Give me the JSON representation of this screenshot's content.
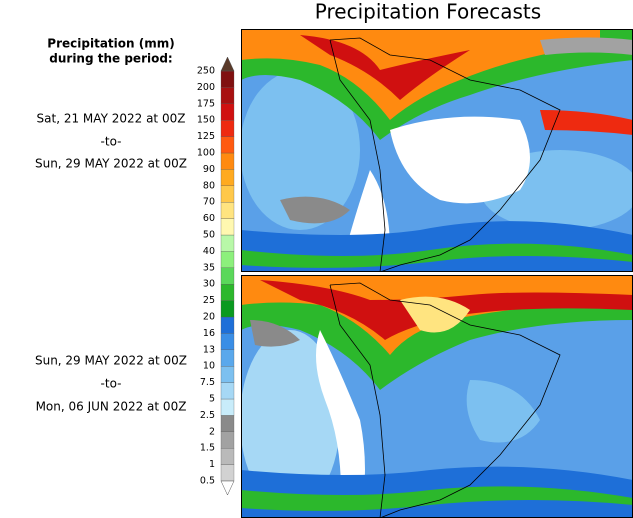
{
  "title": "Precipitation Forecasts",
  "legend_title": [
    "Precipitation (mm)",
    "during the period:"
  ],
  "periods": [
    {
      "start": "Sat, 21 MAY 2022 at 00Z",
      "sep": "-to-",
      "end": "Sun, 29 MAY 2022 at 00Z"
    },
    {
      "start": "Sun, 29 MAY 2022 at 00Z",
      "sep": "-to-",
      "end": "Mon, 06 JUN 2022 at 00Z"
    }
  ],
  "colorbar": {
    "ticks": [
      0.5,
      1,
      1.5,
      2,
      2.5,
      5,
      7.5,
      10,
      13,
      16,
      20,
      25,
      30,
      35,
      40,
      50,
      60,
      70,
      80,
      90,
      100,
      125,
      150,
      175,
      200,
      250
    ],
    "colors": [
      "#d2d2d2",
      "#bababa",
      "#a2a2a2",
      "#8a8a8a",
      "#c8ecfa",
      "#a6d8f5",
      "#7cc0f0",
      "#5aa8ec",
      "#3a8ee6",
      "#1e6fd8",
      "#0a9a20",
      "#2cb82c",
      "#5ad85a",
      "#8cf07c",
      "#b8f8a8",
      "#fff8b0",
      "#ffe480",
      "#ffc84a",
      "#ffaa20",
      "#ff8a10",
      "#ff5a10",
      "#ee2a10",
      "#d01010",
      "#a81010",
      "#801010"
    ],
    "under_color": "#ffffff",
    "over_color": "#5a3a2a"
  }
}
